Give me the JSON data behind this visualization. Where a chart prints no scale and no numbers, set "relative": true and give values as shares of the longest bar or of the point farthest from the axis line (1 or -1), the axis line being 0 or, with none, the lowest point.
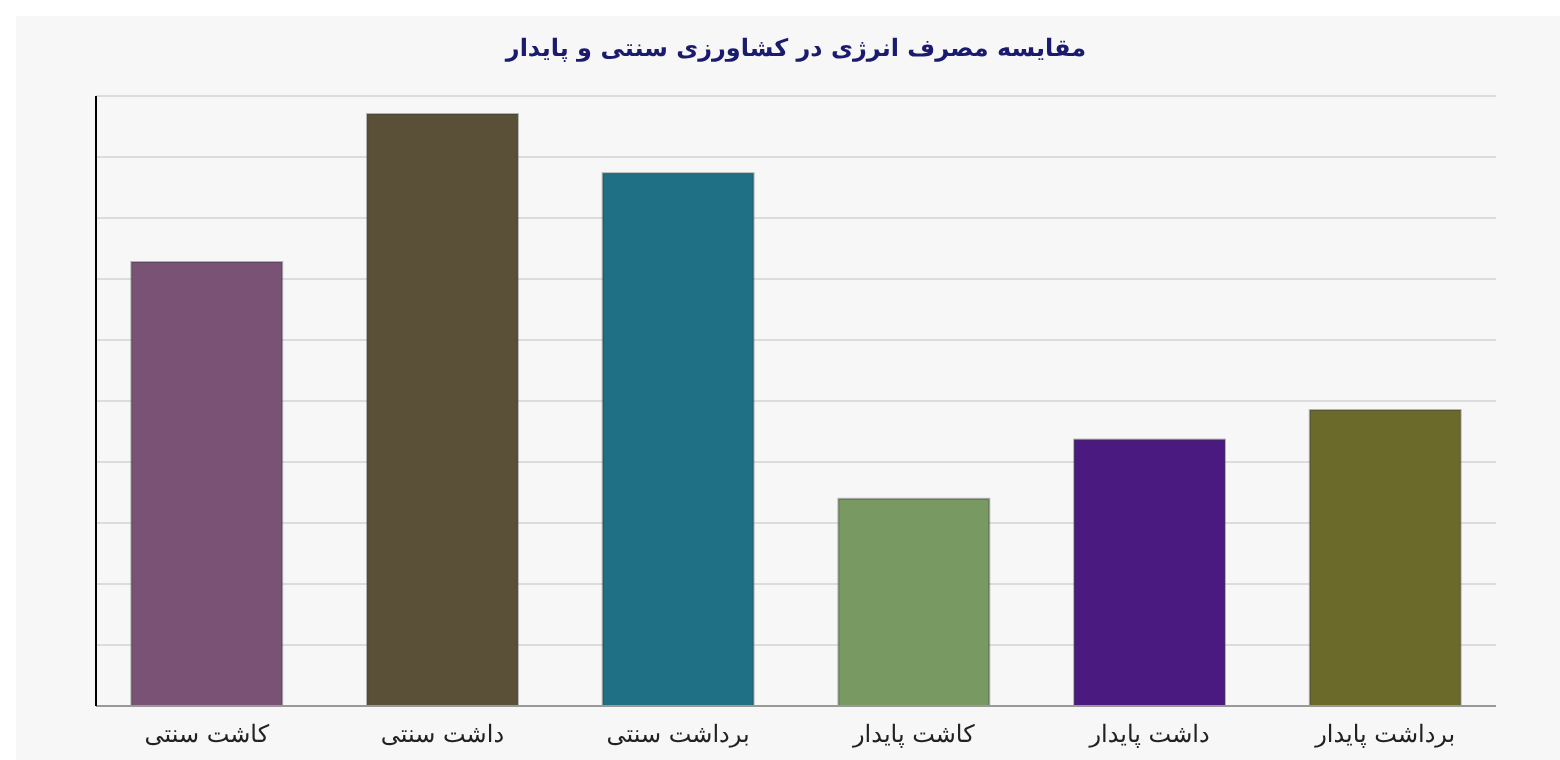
{
  "chart_data": {
    "type": "bar",
    "title": "مقایسه مصرف انرژی در کشاورزی سنتی و پایدار",
    "relative": true,
    "grid": true,
    "categories": [
      "کاشت سنتی",
      "داشت سنتی",
      "برداشت سنتی",
      "کاشت پایدار",
      "داشت پایدار",
      "برداشت پایدار"
    ],
    "values": [
      0.75,
      1,
      0.9,
      0.35,
      0.45,
      0.5
    ],
    "colors": [
      "#7a5275",
      "#5a5038",
      "#1f6f85",
      "#789a62",
      "#4a1a80",
      "#6b6a2a"
    ]
  }
}
